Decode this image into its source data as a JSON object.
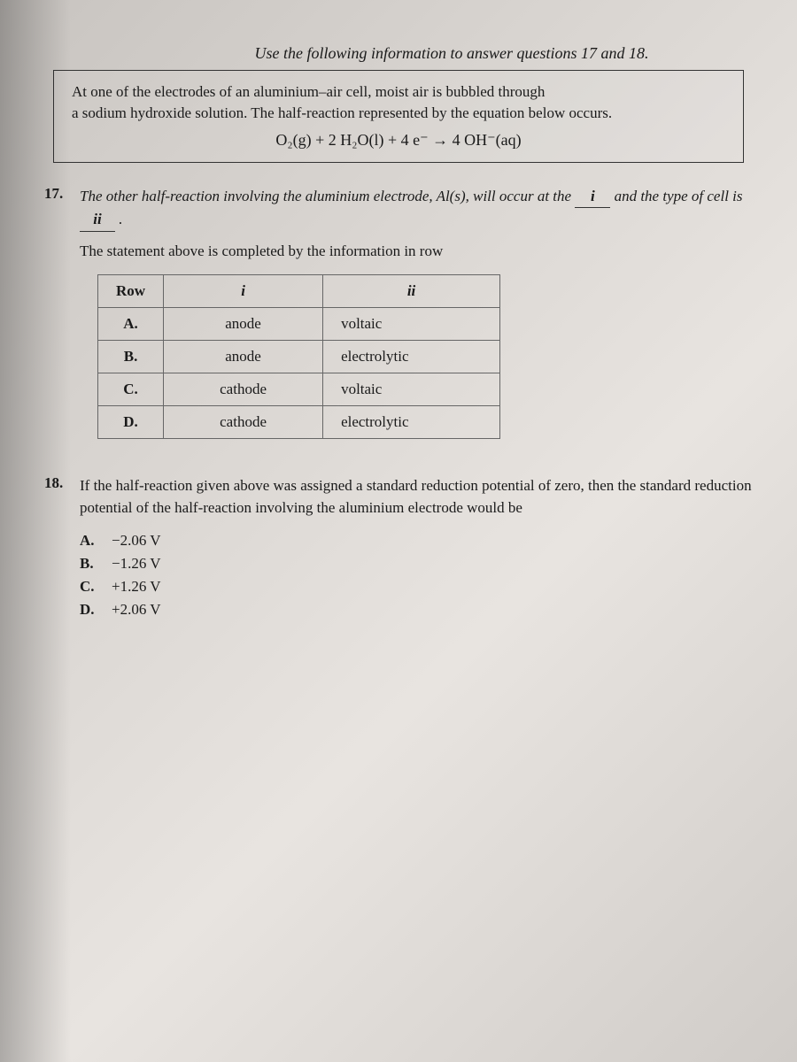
{
  "instruction": "Use the following information to answer questions 17 and 18.",
  "info_box": {
    "line1": "At one of the electrodes of an aluminium–air cell, moist air is bubbled through",
    "line2": "a sodium hydroxide solution. The half-reaction represented by the equation below occurs.",
    "equation": "O₂(g) + 2 H₂O(l) + 4 e⁻ → 4 OH⁻(aq)"
  },
  "q17": {
    "number": "17.",
    "text_pre": "The other half-reaction involving the aluminium electrode, Al(s), will occur at the",
    "blank1": "i",
    "text_mid": "and the type of cell is",
    "blank2": "ii",
    "text_end": ".",
    "sub": "The statement above is completed by the information in row",
    "table": {
      "headers": [
        "Row",
        "i",
        "ii"
      ],
      "rows": [
        [
          "A.",
          "anode",
          "voltaic"
        ],
        [
          "B.",
          "anode",
          "electrolytic"
        ],
        [
          "C.",
          "cathode",
          "voltaic"
        ],
        [
          "D.",
          "cathode",
          "electrolytic"
        ]
      ]
    }
  },
  "q18": {
    "number": "18.",
    "text": "If the half-reaction given above was assigned a standard reduction potential of zero, then the standard reduction potential of the half-reaction involving the aluminium electrode would be",
    "options": [
      {
        "label": "A.",
        "value": "−2.06 V"
      },
      {
        "label": "B.",
        "value": "−1.26 V"
      },
      {
        "label": "C.",
        "value": "+1.26 V"
      },
      {
        "label": "D.",
        "value": "+2.06 V"
      }
    ]
  },
  "style": {
    "body_font": "Georgia, Times New Roman, serif",
    "text_color": "#1a1a1a",
    "border_color": "#333",
    "table_border": "#666",
    "base_fontsize": 17
  }
}
